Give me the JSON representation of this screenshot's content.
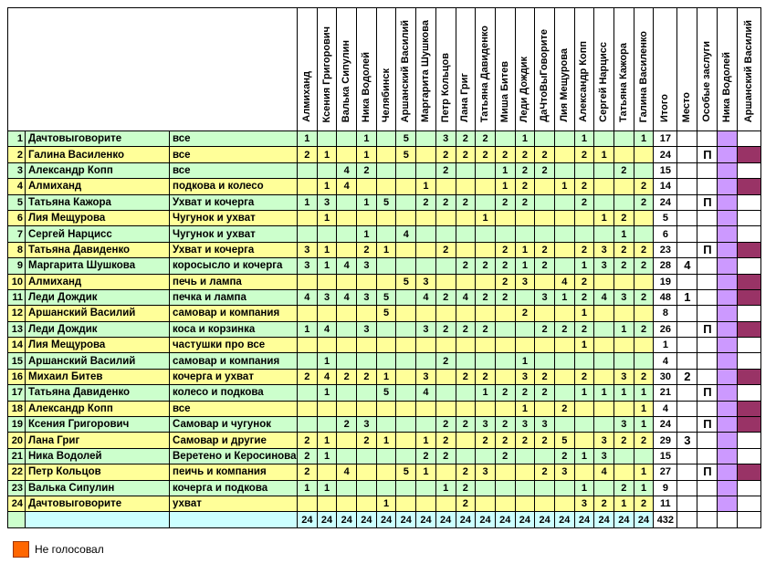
{
  "colors": {
    "row_green": "#CCFFCC",
    "row_yellow": "#FFFF99",
    "totals_cyan": "#CCFFFF",
    "nika_vodoley_column": "#CC99FF",
    "arshansky_mark": "#993366",
    "legend_square": "#FF6600",
    "grid_border": "#000000"
  },
  "table": {
    "voter_headers": [
      "Алмиханд",
      "Ксения Григорович",
      "Валька Сипулин",
      "Ника Водолей",
      "Челябинск",
      "Аршанский Василий",
      "Маргарита Шушкова",
      "Петр Кольцов",
      "Лана Григ",
      "Татьяна Давиденко",
      "Миша Битев",
      "Леди Дождик",
      "ДаЧтоВыГоворите",
      "Лия Мещурова",
      "Александр Копп",
      "Сергей Нарцисс",
      "Татьяна Кажора",
      "Галина Василенко"
    ],
    "summary_headers": [
      "Итого",
      "Место",
      "Особые заслуги",
      "Ника Водолей",
      "Аршанский Василий"
    ],
    "rows": [
      {
        "num": 1,
        "name": "Дачтовыговорите",
        "entry": "все",
        "votes": [
          1,
          null,
          null,
          1,
          null,
          5,
          null,
          3,
          2,
          2,
          null,
          1,
          null,
          null,
          1,
          null,
          null,
          1
        ],
        "total": 17,
        "place": "",
        "merit": "",
        "av_dark": false
      },
      {
        "num": 2,
        "name": "Галина Василенко",
        "entry": "все",
        "votes": [
          2,
          1,
          null,
          1,
          null,
          5,
          null,
          2,
          2,
          2,
          2,
          2,
          2,
          null,
          2,
          1,
          null,
          null
        ],
        "total": 24,
        "place": "",
        "merit": "П",
        "av_dark": true
      },
      {
        "num": 3,
        "name": "Александр Копп",
        "entry": "все",
        "votes": [
          null,
          null,
          4,
          2,
          null,
          null,
          null,
          2,
          null,
          null,
          1,
          2,
          2,
          null,
          null,
          null,
          2,
          null
        ],
        "total": 15,
        "place": "",
        "merit": "",
        "av_dark": false
      },
      {
        "num": 4,
        "name": "Алмиханд",
        "entry": "подкова и колесо",
        "votes": [
          null,
          1,
          4,
          null,
          null,
          null,
          1,
          null,
          null,
          null,
          1,
          2,
          null,
          1,
          2,
          null,
          null,
          2
        ],
        "total": 14,
        "place": "",
        "merit": "",
        "av_dark": true
      },
      {
        "num": 5,
        "name": "Татьяна Кажора",
        "entry": "Ухват и кочерга",
        "votes": [
          1,
          3,
          null,
          1,
          5,
          null,
          2,
          2,
          2,
          null,
          2,
          2,
          null,
          null,
          2,
          null,
          null,
          2
        ],
        "total": 24,
        "place": "",
        "merit": "П",
        "av_dark": false
      },
      {
        "num": 6,
        "name": "Лия Мещурова",
        "entry": "Чугунок и ухват",
        "votes": [
          null,
          1,
          null,
          null,
          null,
          null,
          null,
          null,
          null,
          1,
          null,
          null,
          null,
          null,
          null,
          1,
          2,
          null
        ],
        "total": 5,
        "place": "",
        "merit": "",
        "av_dark": false
      },
      {
        "num": 7,
        "name": "Сергей Нарцисс",
        "entry": "Чугунок и ухват",
        "votes": [
          null,
          null,
          null,
          1,
          null,
          4,
          null,
          null,
          null,
          null,
          null,
          null,
          null,
          null,
          null,
          null,
          1,
          null
        ],
        "total": 6,
        "place": "",
        "merit": "",
        "av_dark": false
      },
      {
        "num": 8,
        "name": "Татьяна Давиденко",
        "entry": "Ухват и кочерга",
        "votes": [
          3,
          1,
          null,
          2,
          1,
          null,
          null,
          2,
          null,
          null,
          2,
          1,
          2,
          null,
          2,
          3,
          2,
          2
        ],
        "total": 23,
        "place": "",
        "merit": "П",
        "av_dark": true
      },
      {
        "num": 9,
        "name": "Маргарита Шушкова",
        "entry": "коросысло и кочерга",
        "votes": [
          3,
          1,
          4,
          3,
          null,
          null,
          null,
          null,
          2,
          2,
          2,
          1,
          2,
          null,
          1,
          3,
          2,
          2
        ],
        "total": 28,
        "place": "4",
        "merit": "",
        "av_dark": false
      },
      {
        "num": 10,
        "name": "Алмиханд",
        "entry": "печь и лампа",
        "votes": [
          null,
          null,
          null,
          null,
          null,
          5,
          3,
          null,
          null,
          null,
          2,
          3,
          null,
          4,
          2,
          null,
          null,
          null
        ],
        "total": 19,
        "place": "",
        "merit": "",
        "av_dark": true
      },
      {
        "num": 11,
        "name": "Леди Дождик",
        "entry": "печка и лампа",
        "votes": [
          4,
          3,
          4,
          3,
          5,
          null,
          4,
          2,
          4,
          2,
          2,
          null,
          3,
          1,
          2,
          4,
          3,
          2
        ],
        "total": 48,
        "place": "1",
        "merit": "",
        "av_dark": true
      },
      {
        "num": 12,
        "name": "Аршанский Василий",
        "entry": "самовар и компания",
        "votes": [
          null,
          null,
          null,
          null,
          5,
          null,
          null,
          null,
          null,
          null,
          null,
          2,
          null,
          null,
          1,
          null,
          null,
          null
        ],
        "total": 8,
        "place": "",
        "merit": "",
        "av_dark": false
      },
      {
        "num": 13,
        "name": "Леди Дождик",
        "entry": "коса и корзинка",
        "votes": [
          1,
          4,
          null,
          3,
          null,
          null,
          3,
          2,
          2,
          2,
          null,
          null,
          2,
          2,
          2,
          null,
          1,
          2
        ],
        "total": 26,
        "place": "",
        "merit": "П",
        "av_dark": true
      },
      {
        "num": 14,
        "name": "Лия Мещурова",
        "entry": "частушки про все",
        "votes": [
          null,
          null,
          null,
          null,
          null,
          null,
          null,
          null,
          null,
          null,
          null,
          null,
          null,
          null,
          1,
          null,
          null,
          null
        ],
        "total": 1,
        "place": "",
        "merit": "",
        "av_dark": false
      },
      {
        "num": 15,
        "name": "Аршанский Василий",
        "entry": "самовар и компания",
        "votes": [
          null,
          1,
          null,
          null,
          null,
          null,
          null,
          2,
          null,
          null,
          null,
          1,
          null,
          null,
          null,
          null,
          null,
          null
        ],
        "total": 4,
        "place": "",
        "merit": "",
        "av_dark": false
      },
      {
        "num": 16,
        "name": "Михаил Битев",
        "entry": "кочерга и ухват",
        "votes": [
          2,
          4,
          2,
          2,
          1,
          null,
          3,
          null,
          2,
          2,
          null,
          3,
          2,
          null,
          2,
          null,
          3,
          2
        ],
        "total": 30,
        "place": "2",
        "merit": "",
        "av_dark": true
      },
      {
        "num": 17,
        "name": "Татьяна Давиденко",
        "entry": "колесо и подкова",
        "votes": [
          null,
          1,
          null,
          null,
          5,
          null,
          4,
          null,
          null,
          1,
          2,
          2,
          2,
          null,
          1,
          1,
          1,
          1
        ],
        "total": 21,
        "place": "",
        "merit": "П",
        "av_dark": false
      },
      {
        "num": 18,
        "name": "Александр Копп",
        "entry": "все",
        "votes": [
          null,
          null,
          null,
          null,
          null,
          null,
          null,
          null,
          null,
          null,
          null,
          1,
          null,
          2,
          null,
          null,
          null,
          1
        ],
        "total": 4,
        "place": "",
        "merit": "",
        "av_dark": true
      },
      {
        "num": 19,
        "name": "Ксения Григорович",
        "entry": "Самовар и чугунок",
        "votes": [
          null,
          null,
          2,
          3,
          null,
          null,
          null,
          2,
          2,
          3,
          2,
          3,
          3,
          null,
          null,
          null,
          3,
          1
        ],
        "total": 24,
        "place": "",
        "merit": "П",
        "av_dark": true
      },
      {
        "num": 20,
        "name": "Лана Григ",
        "entry": "Самовар и другие",
        "votes": [
          2,
          1,
          null,
          2,
          1,
          null,
          1,
          2,
          null,
          2,
          2,
          2,
          2,
          5,
          null,
          3,
          2,
          2
        ],
        "total": 29,
        "place": "3",
        "merit": "",
        "av_dark": false
      },
      {
        "num": 21,
        "name": "Ника Водолей",
        "entry": "Веретено и Керосинова",
        "votes": [
          2,
          1,
          null,
          null,
          null,
          null,
          2,
          2,
          null,
          null,
          2,
          null,
          null,
          2,
          1,
          3,
          null,
          null
        ],
        "total": 15,
        "place": "",
        "merit": "",
        "av_dark": false
      },
      {
        "num": 22,
        "name": "Петр Кольцов",
        "entry": "пеичь и компания",
        "votes": [
          2,
          null,
          4,
          null,
          null,
          5,
          1,
          null,
          2,
          3,
          null,
          null,
          2,
          3,
          null,
          4,
          null,
          1
        ],
        "total": 27,
        "place": "",
        "merit": "П",
        "av_dark": true
      },
      {
        "num": 23,
        "name": "Валька Сипулин",
        "entry": "кочерга и подкова",
        "votes": [
          1,
          1,
          null,
          null,
          null,
          null,
          null,
          1,
          2,
          null,
          null,
          null,
          null,
          null,
          1,
          null,
          2,
          1
        ],
        "total": 9,
        "place": "",
        "merit": "",
        "av_dark": false
      },
      {
        "num": 24,
        "name": "Дачтовыговорите",
        "entry": "ухват",
        "votes": [
          null,
          null,
          null,
          null,
          1,
          null,
          null,
          null,
          2,
          null,
          null,
          null,
          null,
          null,
          3,
          2,
          1,
          2
        ],
        "total": 11,
        "place": "",
        "merit": "",
        "av_dark": false
      }
    ],
    "totals": {
      "votes": [
        24,
        24,
        24,
        24,
        24,
        24,
        24,
        24,
        24,
        24,
        24,
        24,
        24,
        24,
        24,
        24,
        24,
        24
      ],
      "grand_total": 432
    }
  },
  "legend": {
    "label": "Не голосовал"
  }
}
